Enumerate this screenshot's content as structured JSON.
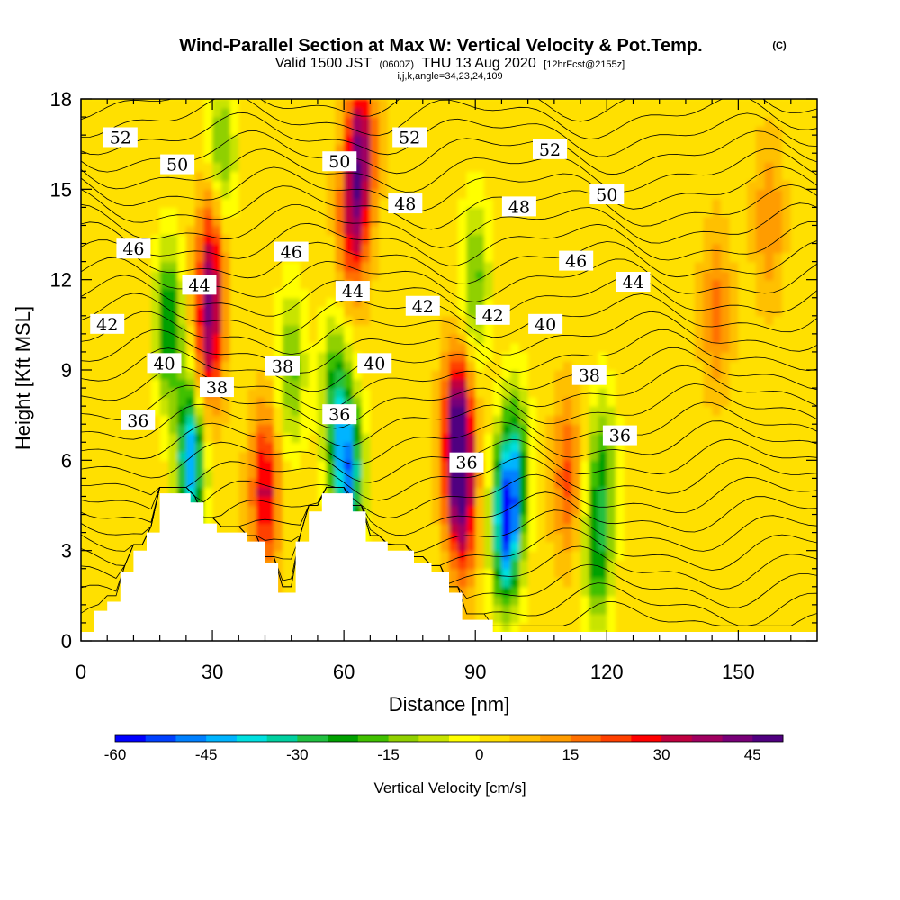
{
  "chart_data": {
    "type": "heatmap",
    "title": "Wind-Parallel Section at Max W: Vertical Velocity & Pot.Temp.",
    "title_mark": "(C)",
    "subtitle_parts": [
      "Valid 1500 JST",
      "(0600Z)",
      "THU 13 Aug 2020",
      "[12hrFcst@2155z]"
    ],
    "subtitle2": "i,j,k,angle=34,23,24,109",
    "xlabel": "Distance [nm]",
    "ylabel": "Height [Kft MSL]",
    "xlim": [
      0,
      168
    ],
    "ylim": [
      0,
      18
    ],
    "xticks": [
      0,
      30,
      60,
      90,
      120,
      150
    ],
    "yticks": [
      0,
      3,
      6,
      9,
      12,
      15,
      18
    ],
    "colorbar": {
      "label": "Vertical Velocity [cm/s]",
      "min": -60,
      "max": 50,
      "ticks": [
        -60,
        -45,
        -30,
        -15,
        0,
        15,
        30,
        45
      ],
      "colors": [
        "#0000ff",
        "#0040ff",
        "#0080ff",
        "#00b4ff",
        "#00e0e0",
        "#00d0a0",
        "#20c040",
        "#00a000",
        "#40c000",
        "#90d000",
        "#c8e400",
        "#ffff00",
        "#ffe000",
        "#ffc000",
        "#ff9c00",
        "#ff7000",
        "#ff4000",
        "#ff0000",
        "#c00040",
        "#a00060",
        "#780078",
        "#500080"
      ]
    },
    "terrain_profile": [
      [
        0,
        0.3
      ],
      [
        3,
        0.3
      ],
      [
        3,
        1
      ],
      [
        6,
        1
      ],
      [
        6,
        1.3
      ],
      [
        9,
        1.3
      ],
      [
        9,
        2.3
      ],
      [
        12,
        2.3
      ],
      [
        12,
        3
      ],
      [
        15,
        3
      ],
      [
        15,
        3.6
      ],
      [
        18,
        3.6
      ],
      [
        18,
        4.9
      ],
      [
        25,
        4.9
      ],
      [
        25,
        4.6
      ],
      [
        28,
        4.6
      ],
      [
        28,
        3.9
      ],
      [
        31,
        3.9
      ],
      [
        31,
        3.6
      ],
      [
        38,
        3.6
      ],
      [
        38,
        3.3
      ],
      [
        42,
        3.3
      ],
      [
        42,
        2.6
      ],
      [
        45,
        2.6
      ],
      [
        45,
        1.6
      ],
      [
        49,
        1.6
      ],
      [
        49,
        3.3
      ],
      [
        52,
        3.3
      ],
      [
        52,
        4.3
      ],
      [
        55,
        4.3
      ],
      [
        55,
        4.9
      ],
      [
        62,
        4.9
      ],
      [
        62,
        4.3
      ],
      [
        65,
        4.3
      ],
      [
        65,
        3.3
      ],
      [
        70,
        3.3
      ],
      [
        70,
        3
      ],
      [
        76,
        3
      ],
      [
        76,
        2.6
      ],
      [
        80,
        2.6
      ],
      [
        80,
        2.3
      ],
      [
        84,
        2.3
      ],
      [
        84,
        1.6
      ],
      [
        87,
        1.6
      ],
      [
        87,
        0.7
      ],
      [
        94,
        0.7
      ],
      [
        94,
        0.3
      ],
      [
        168,
        0.3
      ]
    ],
    "series": [
      {
        "name": "Vertical Velocity",
        "field_features": [
          {
            "x": 20,
            "z": 10.5,
            "w": -30
          },
          {
            "x": 25,
            "z": 6.0,
            "w": -48
          },
          {
            "x": 29,
            "z": 10.0,
            "w": 30
          },
          {
            "x": 30,
            "z": 13.0,
            "w": 25
          },
          {
            "x": 32,
            "z": 16.0,
            "w": -22
          },
          {
            "x": 42,
            "z": 5.0,
            "w": 30
          },
          {
            "x": 48,
            "z": 9.0,
            "w": -20
          },
          {
            "x": 58,
            "z": 8.0,
            "w": -28
          },
          {
            "x": 61,
            "z": 5.5,
            "w": -48
          },
          {
            "x": 62,
            "z": 14.0,
            "w": 28
          },
          {
            "x": 64,
            "z": 16.5,
            "w": 32
          },
          {
            "x": 86,
            "z": 6.8,
            "w": 48
          },
          {
            "x": 87,
            "z": 4.5,
            "w": 28
          },
          {
            "x": 90,
            "z": 12.0,
            "w": -20
          },
          {
            "x": 97,
            "z": 3.8,
            "w": -52
          },
          {
            "x": 99,
            "z": 6.0,
            "w": -28
          },
          {
            "x": 111,
            "z": 5.5,
            "w": 18
          },
          {
            "x": 118,
            "z": 3.0,
            "w": -26
          },
          {
            "x": 119,
            "z": 6.0,
            "w": -18
          },
          {
            "x": 145,
            "z": 11.0,
            "w": 14
          },
          {
            "x": 157,
            "z": 14.0,
            "w": 12
          }
        ]
      },
      {
        "name": "Pot.Temp.",
        "contour_labels": [
          {
            "text": "52",
            "x": 9,
            "z": 16.7
          },
          {
            "text": "50",
            "x": 22,
            "z": 15.8
          },
          {
            "text": "46",
            "x": 12,
            "z": 13.0
          },
          {
            "text": "44",
            "x": 27,
            "z": 11.8
          },
          {
            "text": "42",
            "x": 6,
            "z": 10.5
          },
          {
            "text": "40",
            "x": 19,
            "z": 9.2
          },
          {
            "text": "38",
            "x": 31,
            "z": 8.4
          },
          {
            "text": "36",
            "x": 13,
            "z": 7.3
          },
          {
            "text": "46",
            "x": 48,
            "z": 12.9
          },
          {
            "text": "50",
            "x": 59,
            "z": 15.9
          },
          {
            "text": "44",
            "x": 62,
            "z": 11.6
          },
          {
            "text": "38",
            "x": 46,
            "z": 9.1
          },
          {
            "text": "36",
            "x": 59,
            "z": 7.5
          },
          {
            "text": "40",
            "x": 67,
            "z": 9.2
          },
          {
            "text": "52",
            "x": 75,
            "z": 16.7
          },
          {
            "text": "48",
            "x": 74,
            "z": 14.5
          },
          {
            "text": "42",
            "x": 78,
            "z": 11.1
          },
          {
            "text": "42",
            "x": 94,
            "z": 10.8
          },
          {
            "text": "36",
            "x": 88,
            "z": 5.9
          },
          {
            "text": "52",
            "x": 107,
            "z": 16.3
          },
          {
            "text": "48",
            "x": 100,
            "z": 14.4
          },
          {
            "text": "50",
            "x": 120,
            "z": 14.8
          },
          {
            "text": "46",
            "x": 113,
            "z": 12.6
          },
          {
            "text": "44",
            "x": 126,
            "z": 11.9
          },
          {
            "text": "40",
            "x": 106,
            "z": 10.5
          },
          {
            "text": "38",
            "x": 116,
            "z": 8.8
          },
          {
            "text": "36",
            "x": 123,
            "z": 6.8
          }
        ]
      }
    ]
  }
}
